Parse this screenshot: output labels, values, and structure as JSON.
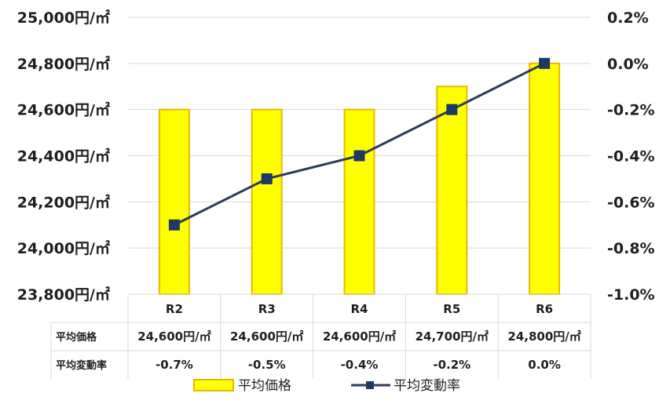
{
  "chart_data": {
    "type": "bar",
    "categories": [
      "R2",
      "R3",
      "R4",
      "R5",
      "R6"
    ],
    "series": [
      {
        "name": "平均価格",
        "type": "bar",
        "axis": "left",
        "values": [
          24600,
          24600,
          24600,
          24700,
          24800
        ],
        "color": "#FFFF00",
        "border_color": "#E8B800"
      },
      {
        "name": "平均変動率",
        "type": "line",
        "axis": "right",
        "values": [
          -0.7,
          -0.5,
          -0.4,
          -0.2,
          0.0
        ],
        "color": "#2E3A59",
        "marker_color": "#1F3864"
      }
    ],
    "y_left": {
      "min": 23800,
      "max": 25000,
      "ticks": [
        {
          "value": 25000,
          "label": "25,000円/㎡"
        },
        {
          "value": 24800,
          "label": "24,800円/㎡"
        },
        {
          "value": 24600,
          "label": "24,600円/㎡"
        },
        {
          "value": 24400,
          "label": "24,400円/㎡"
        },
        {
          "value": 24200,
          "label": "24,200円/㎡"
        },
        {
          "value": 24000,
          "label": "24,000円/㎡"
        },
        {
          "value": 23800,
          "label": "23,800円/㎡"
        }
      ]
    },
    "y_right": {
      "min": -1.0,
      "max": 0.2,
      "ticks": [
        {
          "value": 0.2,
          "label": "0.2%"
        },
        {
          "value": 0.0,
          "label": "0.0%"
        },
        {
          "value": -0.2,
          "label": "-0.2%"
        },
        {
          "value": -0.4,
          "label": "-0.4%"
        },
        {
          "value": -0.6,
          "label": "-0.6%"
        },
        {
          "value": -0.8,
          "label": "-0.8%"
        },
        {
          "value": -1.0,
          "label": "-1.0%"
        }
      ]
    },
    "grid": true,
    "legend_position": "bottom",
    "data_table": {
      "rows": [
        {
          "label": "平均価格",
          "cells": [
            "24,600円/㎡",
            "24,600円/㎡",
            "24,600円/㎡",
            "24,700円/㎡",
            "24,800円/㎡"
          ]
        },
        {
          "label": "平均変動率",
          "cells": [
            "-0.7%",
            "-0.5%",
            "-0.4%",
            "-0.2%",
            "0.0%"
          ]
        }
      ]
    },
    "colors": {
      "gridline": "#D9D9D9",
      "table_border": "#D9D9D9",
      "text": "#1F1F1F"
    }
  }
}
